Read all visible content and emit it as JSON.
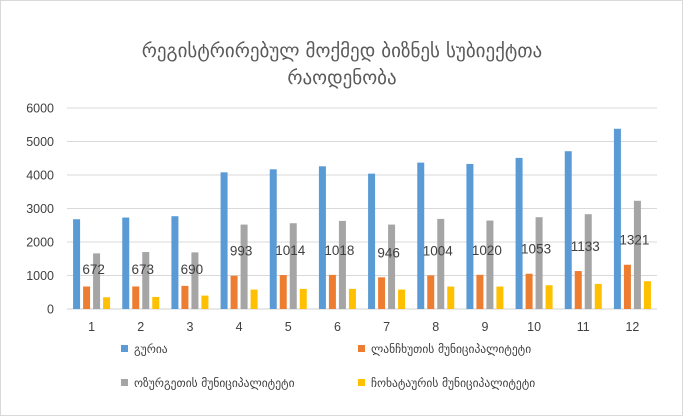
{
  "chart_data": {
    "type": "bar",
    "title_lines": [
      "რეგისტრირებულ მოქმედ ბიზნეს სუბიექტთა",
      "რაოდენობა"
    ],
    "xlabel": "",
    "ylabel": "",
    "categories": [
      "1",
      "2",
      "3",
      "4",
      "5",
      "6",
      "7",
      "8",
      "9",
      "10",
      "11",
      "12"
    ],
    "ylim": [
      0,
      6000
    ],
    "yticks": [
      0,
      1000,
      2000,
      3000,
      4000,
      5000,
      6000
    ],
    "grid": true,
    "legend_position": "bottom",
    "series": [
      {
        "name": "გურია",
        "color": "#5b9bd5",
        "values": [
          2680,
          2730,
          2770,
          4080,
          4170,
          4260,
          4040,
          4370,
          4330,
          4510,
          4710,
          5380
        ]
      },
      {
        "name": "ლანჩხუთის მუნიციპალიტეტი",
        "color": "#ed7d31",
        "values": [
          672,
          673,
          690,
          993,
          1014,
          1018,
          946,
          1004,
          1020,
          1053,
          1133,
          1321
        ],
        "show_labels": true
      },
      {
        "name": "ოზურგეთის მუნიციპალიტეტი",
        "color": "#a5a5a5",
        "values": [
          1660,
          1700,
          1690,
          2520,
          2560,
          2630,
          2520,
          2690,
          2640,
          2740,
          2830,
          3230
        ]
      },
      {
        "name": "ჩოხატაურის მუნიციპალიტეტი",
        "color": "#ffc000",
        "values": [
          350,
          360,
          400,
          580,
          600,
          600,
          580,
          670,
          670,
          710,
          750,
          830
        ]
      }
    ]
  }
}
